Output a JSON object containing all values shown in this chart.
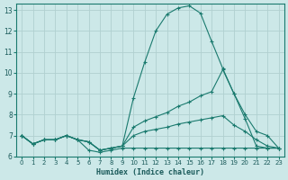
{
  "xlabel": "Humidex (Indice chaleur)",
  "bg_color": "#cce8e8",
  "grid_color": "#b0d0d0",
  "line_color": "#1a7a6e",
  "xlim": [
    -0.5,
    23.5
  ],
  "ylim": [
    6.0,
    13.3
  ],
  "yticks": [
    6,
    7,
    8,
    9,
    10,
    11,
    12,
    13
  ],
  "xticks": [
    0,
    1,
    2,
    3,
    4,
    5,
    6,
    7,
    8,
    9,
    10,
    11,
    12,
    13,
    14,
    15,
    16,
    17,
    18,
    19,
    20,
    21,
    22,
    23
  ],
  "line1_x": [
    0,
    1,
    2,
    3,
    4,
    5,
    6,
    7,
    8,
    9,
    10,
    11,
    12,
    13,
    14,
    15,
    16,
    17,
    18,
    19,
    20,
    21,
    22,
    23
  ],
  "line1_y": [
    7.0,
    6.6,
    6.8,
    6.8,
    7.0,
    6.8,
    6.7,
    6.3,
    6.4,
    6.5,
    8.8,
    10.5,
    12.0,
    12.8,
    13.1,
    13.2,
    12.85,
    11.5,
    10.2,
    9.0,
    8.0,
    7.2,
    7.0,
    6.4
  ],
  "line2_x": [
    0,
    1,
    2,
    3,
    4,
    5,
    6,
    7,
    8,
    9,
    10,
    11,
    12,
    13,
    14,
    15,
    16,
    17,
    18,
    19,
    20,
    21,
    22,
    23
  ],
  "line2_y": [
    7.0,
    6.6,
    6.8,
    6.8,
    7.0,
    6.8,
    6.7,
    6.3,
    6.4,
    6.5,
    7.4,
    7.7,
    7.9,
    8.1,
    8.4,
    8.6,
    8.9,
    9.1,
    10.15,
    9.0,
    7.8,
    6.5,
    6.4,
    6.4
  ],
  "line3_x": [
    0,
    1,
    2,
    3,
    4,
    5,
    6,
    7,
    8,
    9,
    10,
    11,
    12,
    13,
    14,
    15,
    16,
    17,
    18,
    19,
    20,
    21,
    22,
    23
  ],
  "line3_y": [
    7.0,
    6.6,
    6.8,
    6.8,
    7.0,
    6.8,
    6.7,
    6.3,
    6.4,
    6.5,
    7.0,
    7.2,
    7.3,
    7.4,
    7.55,
    7.65,
    7.75,
    7.85,
    7.95,
    7.5,
    7.2,
    6.8,
    6.5,
    6.4
  ],
  "line4_x": [
    0,
    1,
    2,
    3,
    4,
    5,
    6,
    7,
    8,
    9,
    10,
    11,
    12,
    13,
    14,
    15,
    16,
    17,
    18,
    19,
    20,
    21,
    22,
    23
  ],
  "line4_y": [
    7.0,
    6.6,
    6.8,
    6.8,
    7.0,
    6.8,
    6.3,
    6.2,
    6.3,
    6.4,
    6.4,
    6.4,
    6.4,
    6.4,
    6.4,
    6.4,
    6.4,
    6.4,
    6.4,
    6.4,
    6.4,
    6.4,
    6.4,
    6.4
  ]
}
